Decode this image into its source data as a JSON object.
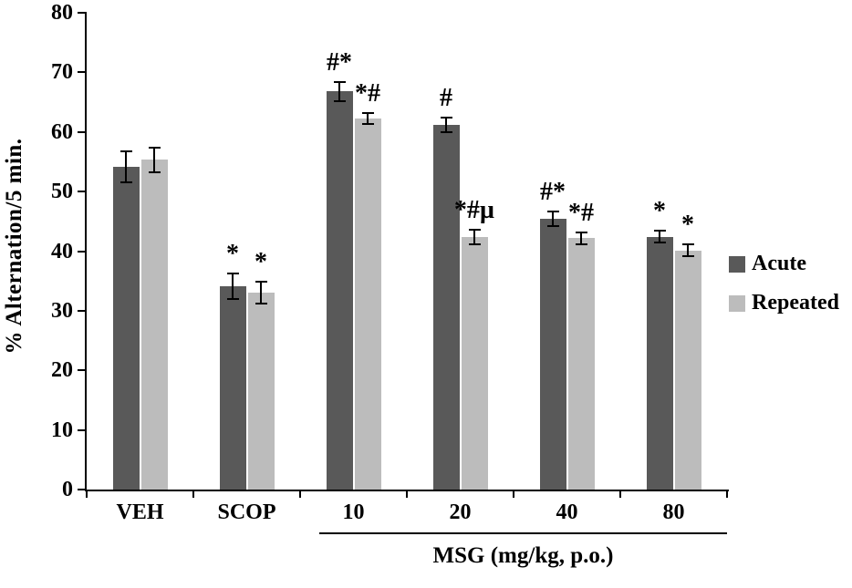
{
  "chart_data": {
    "type": "bar",
    "title": "",
    "ylabel": "% Alternation/5 min.",
    "group_axis_label": "MSG (mg/kg, p.o.)",
    "ylim": [
      0,
      80
    ],
    "yticks": [
      0,
      10,
      20,
      30,
      40,
      50,
      60,
      70,
      80
    ],
    "grid": false,
    "legend_position": "right",
    "categories": [
      "VEH",
      "SCOP",
      "10",
      "20",
      "40",
      "80"
    ],
    "msg_bracket_categories": [
      "10",
      "20",
      "40",
      "80"
    ],
    "series": [
      {
        "name": "Acute",
        "color": "#595959",
        "values": [
          54.2,
          34.1,
          66.8,
          61.2,
          45.4,
          42.4
        ],
        "errors": [
          2.6,
          2.2,
          1.6,
          1.2,
          1.2,
          1.0
        ],
        "annotations": [
          "",
          "*",
          "#*",
          "#",
          "#*",
          "*"
        ]
      },
      {
        "name": "Repeated",
        "color": "#bcbcbc",
        "values": [
          55.3,
          33.0,
          62.3,
          42.4,
          42.2,
          40.1
        ],
        "errors": [
          2.0,
          1.8,
          0.9,
          1.2,
          1.0,
          1.0
        ],
        "annotations": [
          "",
          "*",
          "*#",
          "*#µ",
          "*#",
          "*"
        ]
      }
    ],
    "axis_color": "#000000",
    "background_color": "#ffffff"
  }
}
